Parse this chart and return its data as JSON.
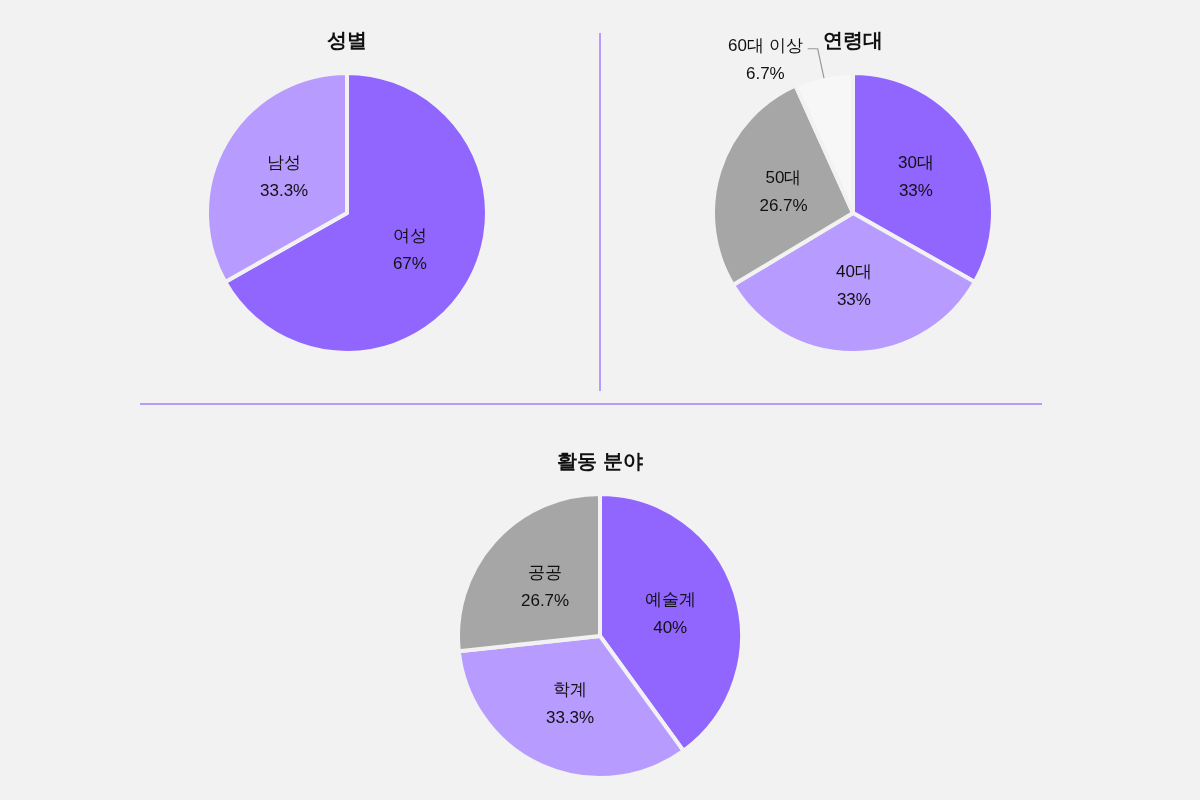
{
  "chart_data": [
    {
      "type": "pie",
      "title": "성별",
      "categories": [
        "여성",
        "남성"
      ],
      "values": [
        67,
        33.3
      ],
      "value_labels": [
        "67%",
        "33.3%"
      ],
      "colors": [
        "#9166ff",
        "#b89bff"
      ]
    },
    {
      "type": "pie",
      "title": "연령대",
      "categories": [
        "30대",
        "40대",
        "50대",
        "60대 이상"
      ],
      "values": [
        33,
        33,
        26.7,
        6.7
      ],
      "value_labels": [
        "33%",
        "33%",
        "26.7%",
        "6.7%"
      ],
      "colors": [
        "#9166ff",
        "#b89bff",
        "#a6a6a6",
        "#f7f7f7"
      ]
    },
    {
      "type": "pie",
      "title": "활동 분야",
      "categories": [
        "예술계",
        "학계",
        "공공"
      ],
      "values": [
        40,
        33.3,
        26.7
      ],
      "value_labels": [
        "40%",
        "33.3%",
        "26.7%"
      ],
      "colors": [
        "#9166ff",
        "#b89bff",
        "#a6a6a6"
      ]
    }
  ]
}
